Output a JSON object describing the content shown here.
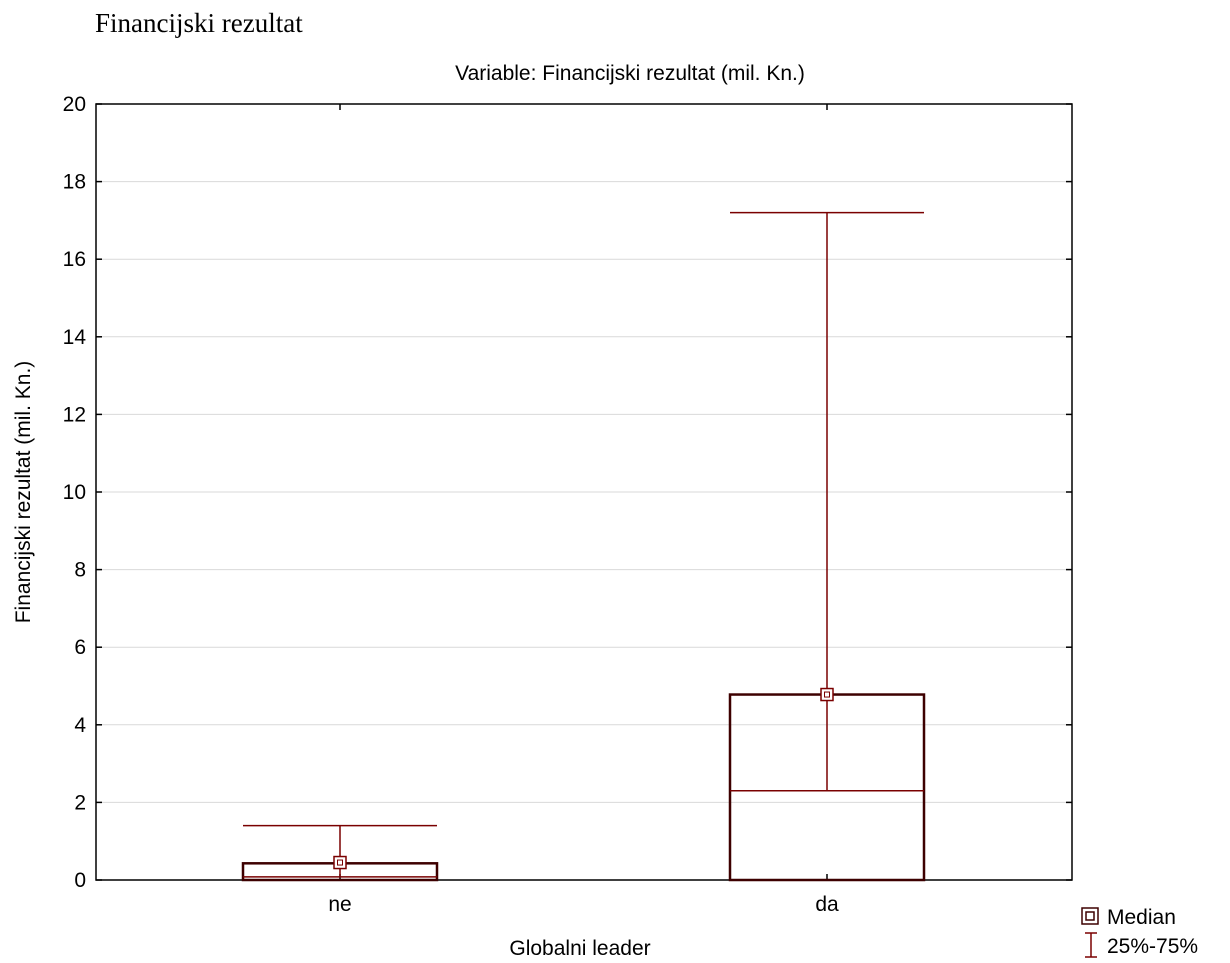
{
  "page_title": "Financijski rezultat",
  "chart_data": {
    "type": "box",
    "title": "Variable: Financijski rezultat (mil. Kn.)",
    "xlabel": "Globalni leader",
    "ylabel": "Financijski rezultat (mil. Kn.)",
    "ylim": [
      0,
      20
    ],
    "yticks": [
      0,
      2,
      4,
      6,
      8,
      10,
      12,
      14,
      16,
      18,
      20
    ],
    "grid": true,
    "categories": [
      "ne",
      "da"
    ],
    "boxes": [
      {
        "category": "ne",
        "q1": 0.0,
        "q3": 0.43,
        "inner_line": 0.08,
        "median_marker": 0.45,
        "whisker_high": 1.4
      },
      {
        "category": "da",
        "q1": 0.0,
        "q3": 4.78,
        "inner_line": 2.3,
        "median_marker": 4.78,
        "whisker_high": 17.2
      }
    ],
    "legend": {
      "position": "bottom-right",
      "items": [
        "Median",
        "25%-75%"
      ]
    },
    "colors": {
      "series": "#7a0000",
      "box": "#3d0000"
    }
  }
}
